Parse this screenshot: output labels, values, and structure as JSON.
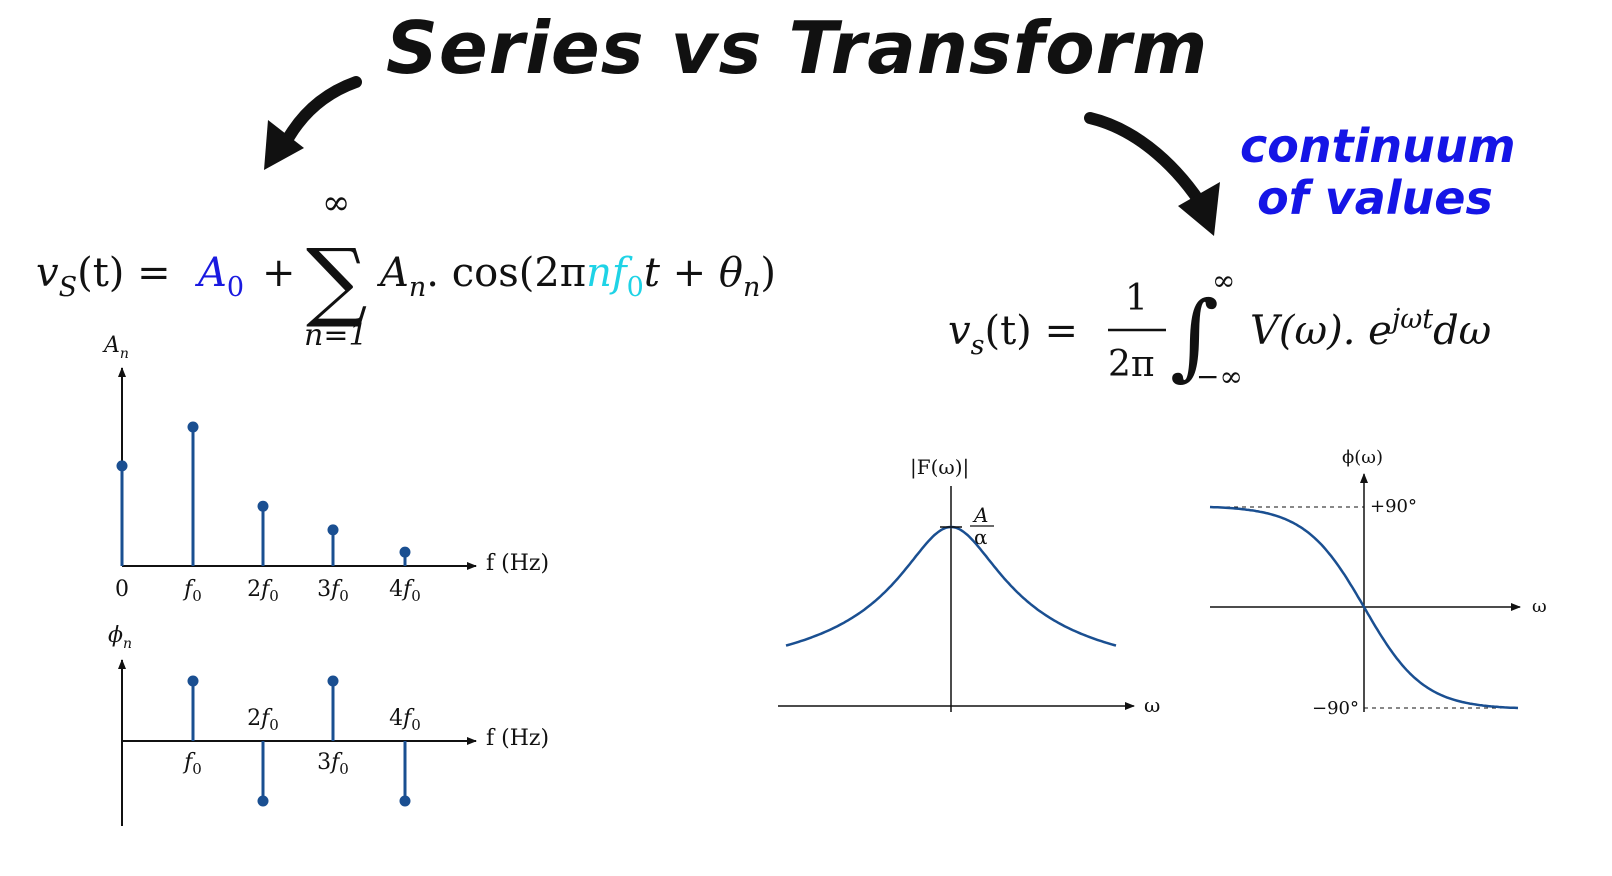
{
  "title": "Series vs Transform",
  "note": {
    "line1": "continuum",
    "line2": "of values"
  },
  "colors": {
    "ink": "#111111",
    "stem": "#1a4f91",
    "a0": "#1a1ae0",
    "nf0": "#1fd3e6",
    "note": "#1515e6"
  },
  "series_eq": {
    "lhs": "v",
    "lhs_sub": "S",
    "arg": "(t) =",
    "a0": "A",
    "a0_sub": "0",
    "plus": "+",
    "sum_top": "∞",
    "sum_sym": "∑",
    "sum_bottom": "n=1",
    "an": "A",
    "an_sub": "n",
    "cos": ". cos(2π",
    "n": "n",
    "f0": "f",
    "f0_sub": "0",
    "rest": "t + θ",
    "theta_sub": "n",
    "close": ")"
  },
  "transform_eq": {
    "lhs": "v",
    "lhs_sub": "s",
    "arg": "(t) =",
    "num": "1",
    "den": "2π",
    "int_sym": "∫",
    "upper": "∞",
    "lower": "−∞",
    "body": "V(ω). e",
    "exp": "jωt",
    "dw": "dω"
  },
  "amp_spectrum": {
    "ylabel": "A",
    "ylabel_sub": "n",
    "xlabel": "f (Hz)",
    "ticks": [
      "0",
      "f0",
      "2f0",
      "3f0",
      "4f0"
    ],
    "values": [
      0.72,
      1.0,
      0.43,
      0.26,
      0.1
    ]
  },
  "phase_spectrum": {
    "ylabel": "ϕ",
    "ylabel_sub": "n",
    "xlabel": "f (Hz)",
    "ticks": [
      "f0",
      "2f0",
      "3f0",
      "4f0"
    ],
    "values": [
      1,
      -1,
      1,
      -1
    ]
  },
  "mag_plot": {
    "ylabel": "|F(ω)|",
    "peak_num": "A",
    "peak_den": "α",
    "xlabel": "ω"
  },
  "phase_plot": {
    "ylabel": "ϕ(ω)",
    "top": "+90°",
    "bottom": "−90°",
    "xlabel": "ω"
  }
}
